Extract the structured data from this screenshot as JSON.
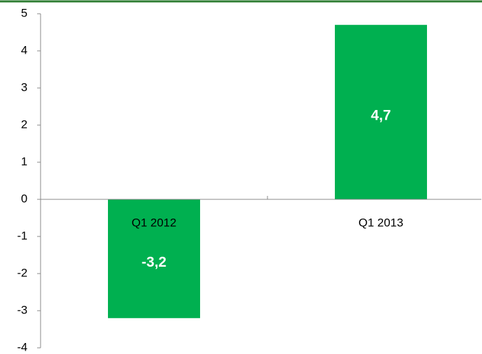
{
  "chart_data": {
    "type": "bar",
    "categories": [
      "Q1 2012",
      "Q1 2013"
    ],
    "values": [
      -3.2,
      4.7
    ],
    "value_labels": [
      "-3,2",
      "4,7"
    ],
    "color": "#00b050",
    "ylim": [
      -4,
      5
    ],
    "yticks": [
      -4,
      -3,
      -2,
      -1,
      0,
      1,
      2,
      3,
      4,
      5
    ]
  }
}
